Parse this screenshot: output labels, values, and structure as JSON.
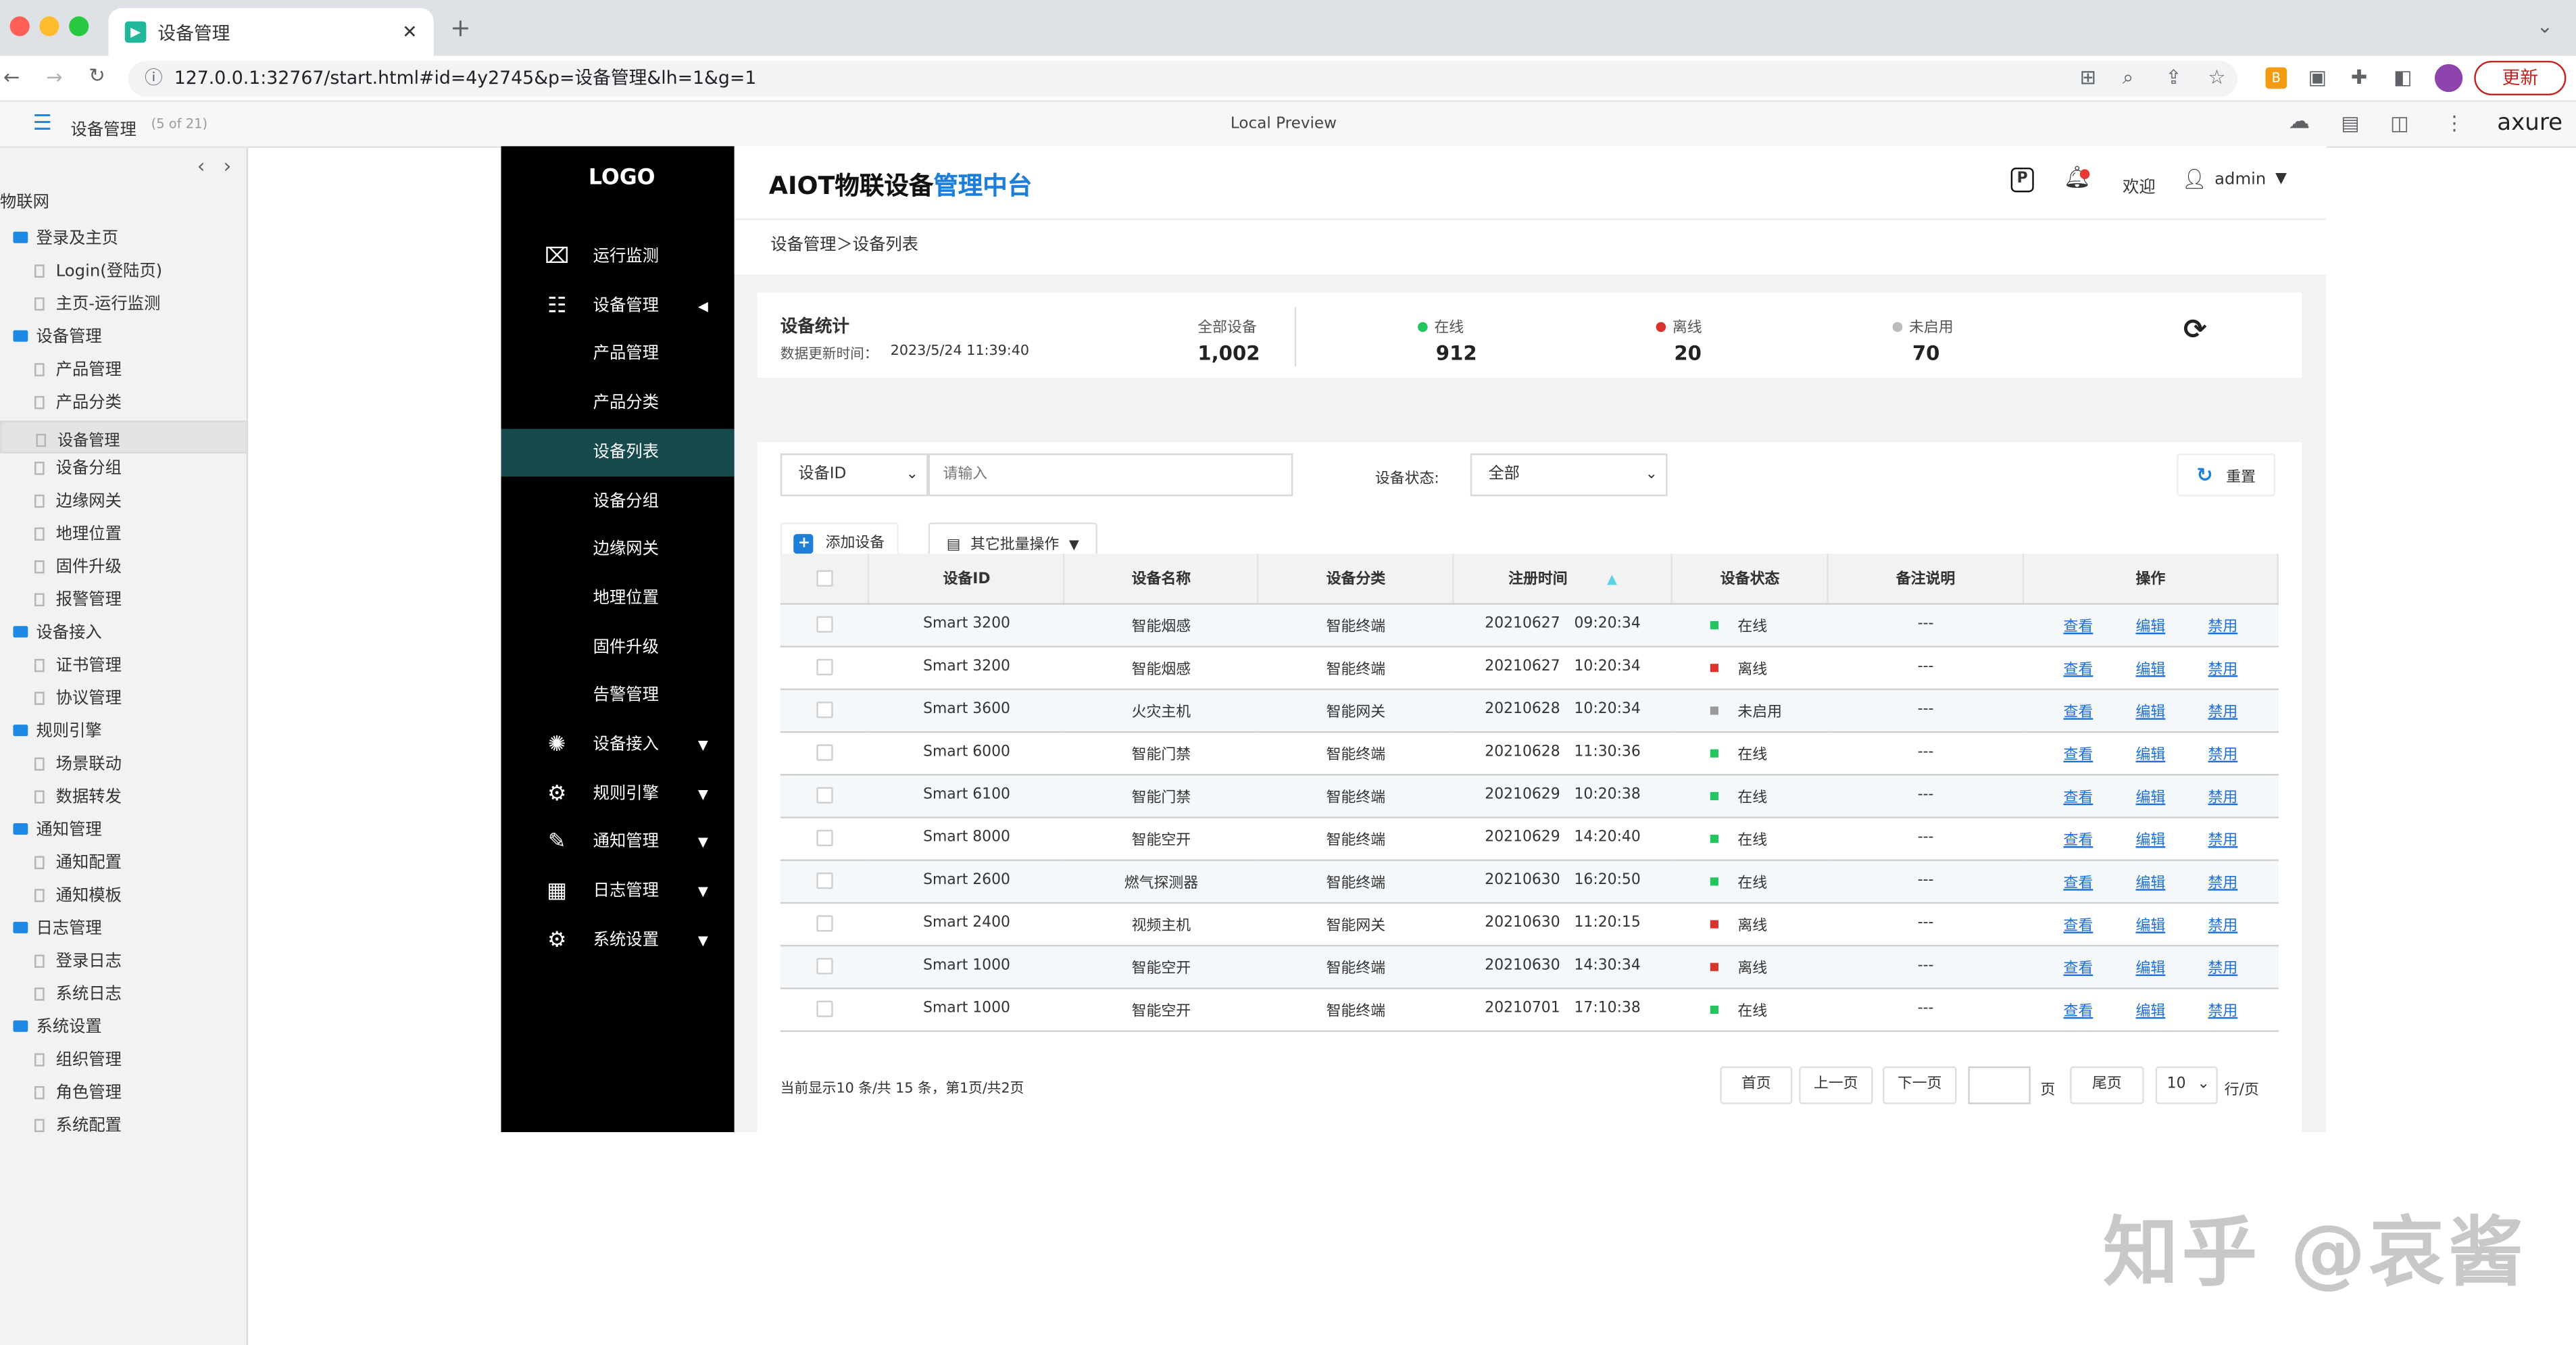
{
  "browser": {
    "tab_title": "设备管理",
    "url": "127.0.0.1:32767/start.html#id=4y2745&p=设备管理&lh=1&g=1",
    "update_label": "更新"
  },
  "axure": {
    "page_name": "设备管理",
    "page_count": "(5 of 21)",
    "preview_label": "Local Preview",
    "brand": "axure"
  },
  "sitemap": {
    "root": "物联网",
    "items": [
      {
        "label": "登录及主页",
        "type": "folder"
      },
      {
        "label": "Login(登陆页)",
        "type": "page"
      },
      {
        "label": "主页-运行监测",
        "type": "page"
      },
      {
        "label": "设备管理",
        "type": "folder"
      },
      {
        "label": "产品管理",
        "type": "page"
      },
      {
        "label": "产品分类",
        "type": "page"
      },
      {
        "label": "设备管理",
        "type": "page",
        "selected": true
      },
      {
        "label": "设备分组",
        "type": "page"
      },
      {
        "label": "边缘网关",
        "type": "page"
      },
      {
        "label": "地理位置",
        "type": "page"
      },
      {
        "label": "固件升级",
        "type": "page"
      },
      {
        "label": "报警管理",
        "type": "page"
      },
      {
        "label": "设备接入",
        "type": "folder"
      },
      {
        "label": "证书管理",
        "type": "page"
      },
      {
        "label": "协议管理",
        "type": "page"
      },
      {
        "label": "规则引擎",
        "type": "folder"
      },
      {
        "label": "场景联动",
        "type": "page"
      },
      {
        "label": "数据转发",
        "type": "page"
      },
      {
        "label": "通知管理",
        "type": "folder"
      },
      {
        "label": "通知配置",
        "type": "page"
      },
      {
        "label": "通知模板",
        "type": "page"
      },
      {
        "label": "日志管理",
        "type": "folder"
      },
      {
        "label": "登录日志",
        "type": "page"
      },
      {
        "label": "系统日志",
        "type": "page"
      },
      {
        "label": "系统设置",
        "type": "folder"
      },
      {
        "label": "组织管理",
        "type": "page"
      },
      {
        "label": "角色管理",
        "type": "page"
      },
      {
        "label": "系统配置",
        "type": "page"
      }
    ]
  },
  "nav": {
    "logo": "LOGO",
    "items": [
      {
        "label": "运行监测",
        "icon": "monitor-icon",
        "level": 1
      },
      {
        "label": "设备管理",
        "icon": "device-icon",
        "level": 1,
        "arrow": "◀"
      },
      {
        "label": "产品管理",
        "level": 2
      },
      {
        "label": "产品分类",
        "level": 2
      },
      {
        "label": "设备列表",
        "level": 2,
        "active": true
      },
      {
        "label": "设备分组",
        "level": 2
      },
      {
        "label": "边缘网关",
        "level": 2
      },
      {
        "label": "地理位置",
        "level": 2
      },
      {
        "label": "固件升级",
        "level": 2
      },
      {
        "label": "告警管理",
        "level": 2
      },
      {
        "label": "设备接入",
        "icon": "access-icon",
        "level": 1,
        "arrow": "▼"
      },
      {
        "label": "规则引擎",
        "icon": "rule-icon",
        "level": 1,
        "arrow": "▼"
      },
      {
        "label": "通知管理",
        "icon": "notice-icon",
        "level": 1,
        "arrow": "▼"
      },
      {
        "label": "日志管理",
        "icon": "log-icon",
        "level": 1,
        "arrow": "▼"
      },
      {
        "label": "系统设置",
        "icon": "gear-icon",
        "level": 1,
        "arrow": "▼"
      }
    ]
  },
  "header": {
    "title_a": "AIOT物联设备",
    "title_b": "管理中台",
    "welcome": "欢迎",
    "user": "admin"
  },
  "breadcrumb": "设备管理＞设备列表",
  "stats": {
    "title": "设备统计",
    "update_label": "数据更新时间：",
    "update_time": "2023/5/24 11:39:40",
    "total_label": "全部设备",
    "total": "1,002",
    "online_label": "在线",
    "online": "912",
    "offline_label": "离线",
    "offline": "20",
    "disabled_label": "未启用",
    "disabled": "70"
  },
  "filter": {
    "field": "设备ID",
    "placeholder": "请输入",
    "status_label": "设备状态:",
    "status_value": "全部",
    "reset": "重置",
    "add": "添加设备",
    "batch": "其它批量操作"
  },
  "table": {
    "headers": [
      "设备ID",
      "设备名称",
      "设备分类",
      "注册时间",
      "设备状态",
      "备注说明",
      "操作"
    ],
    "rows": [
      [
        "Smart 3200",
        "智能烟感",
        "智能终端",
        "20210627   09:20:34",
        "在线",
        "---"
      ],
      [
        "Smart 3200",
        "智能烟感",
        "智能终端",
        "20210627   10:20:34",
        "离线",
        "---"
      ],
      [
        "Smart 3600",
        "火灾主机",
        "智能网关",
        "20210628   10:20:34",
        "未启用",
        "---"
      ],
      [
        "Smart 6000",
        "智能门禁",
        "智能终端",
        "20210628   11:30:36",
        "在线",
        "---"
      ],
      [
        "Smart 6100",
        "智能门禁",
        "智能终端",
        "20210629   10:20:38",
        "在线",
        "---"
      ],
      [
        "Smart 8000",
        "智能空开",
        "智能终端",
        "20210629   14:20:40",
        "在线",
        "---"
      ],
      [
        "Smart 2600",
        "燃气探测器",
        "智能终端",
        "20210630   16:20:50",
        "在线",
        "---"
      ],
      [
        "Smart 2400",
        "视频主机",
        "智能网关",
        "20210630   11:20:15",
        "离线",
        "---"
      ],
      [
        "Smart 1000",
        "智能空开",
        "智能终端",
        "20210630   14:30:34",
        "离线",
        "---"
      ],
      [
        "Smart 1000",
        "智能空开",
        "智能终端",
        "20210701   17:10:38",
        "在线",
        "---"
      ]
    ],
    "actions": [
      "查看",
      "编辑",
      "禁用"
    ]
  },
  "status_colors": {
    "在线": "#22c55e",
    "离线": "#d9342b",
    "未启用": "#999999"
  },
  "pager": {
    "info": "当前显示10 条/共 15 条，第1页/共2页",
    "first": "首页",
    "prev": "上一页",
    "next": "下一页",
    "page_unit": "页",
    "last": "尾页",
    "size": "10",
    "size_unit": "行/页"
  },
  "watermark": "知乎 @哀酱"
}
